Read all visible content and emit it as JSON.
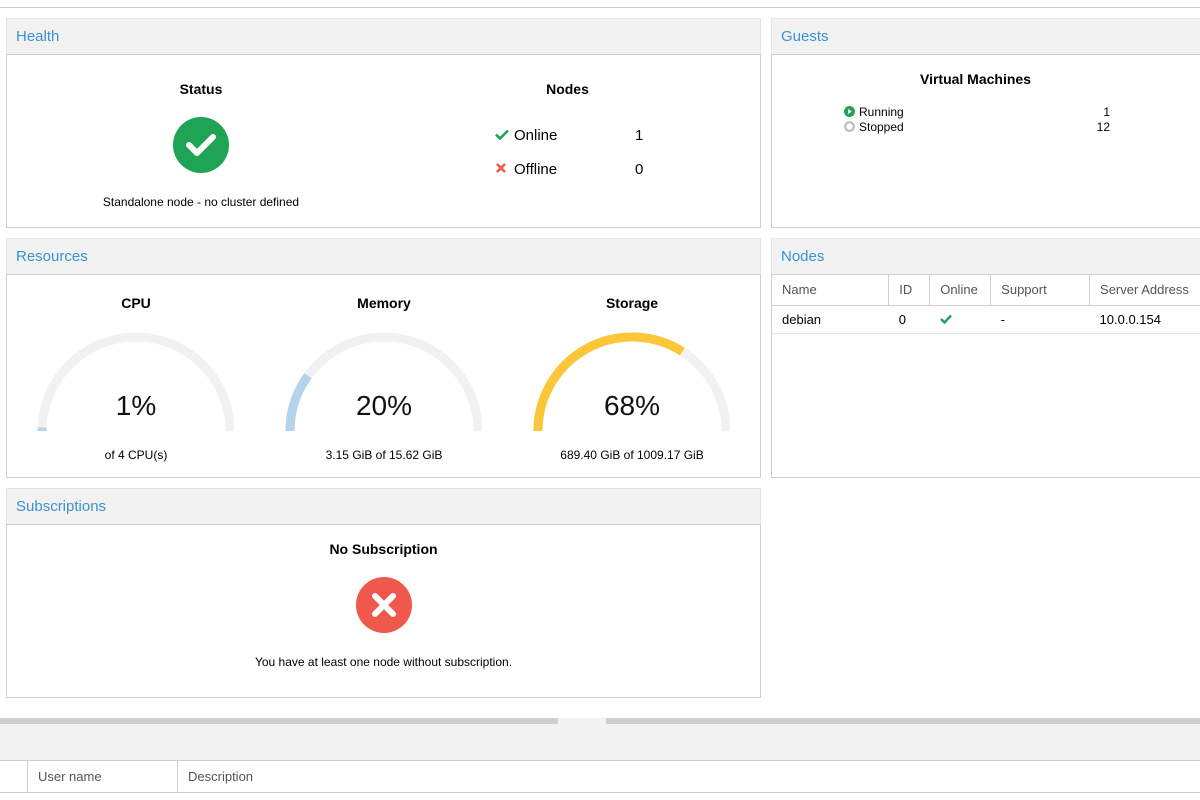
{
  "health": {
    "title": "Health",
    "status_title": "Status",
    "status_text": "Standalone node - no cluster defined",
    "nodes_title": "Nodes",
    "online_label": "Online",
    "online_count": "1",
    "offline_label": "Offline",
    "offline_count": "0"
  },
  "guests": {
    "title": "Guests",
    "vm_title": "Virtual Machines",
    "running_label": "Running",
    "running_count": "1",
    "stopped_label": "Stopped",
    "stopped_count": "12"
  },
  "resources": {
    "title": "Resources",
    "cpu": {
      "title": "CPU",
      "value": "1%",
      "fraction": 0.01,
      "sub": "of 4 CPU(s)",
      "color": "#b4d3ec"
    },
    "memory": {
      "title": "Memory",
      "value": "20%",
      "fraction": 0.2,
      "sub": "3.15 GiB of 15.62 GiB",
      "color": "#b4d3ec"
    },
    "storage": {
      "title": "Storage",
      "value": "68%",
      "fraction": 0.68,
      "sub": "689.40 GiB of 1009.17 GiB",
      "color": "#fbc637"
    }
  },
  "nodes": {
    "title": "Nodes",
    "columns": [
      "Name",
      "ID",
      "Online",
      "Support",
      "Server Address"
    ],
    "rows": [
      {
        "name": "debian",
        "id": "0",
        "online": "check-icon",
        "support": "-",
        "address": "10.0.0.154"
      }
    ]
  },
  "subscriptions": {
    "title": "Subscriptions",
    "heading": "No Subscription",
    "text": "You have at least one node without subscription."
  },
  "bottom_grid": {
    "columns": [
      "User name",
      "Description"
    ]
  },
  "colors": {
    "accent": "#3892d4",
    "ok": "#1ea454",
    "error": "#f0584b",
    "gauge_track": "#f1f1f1"
  }
}
